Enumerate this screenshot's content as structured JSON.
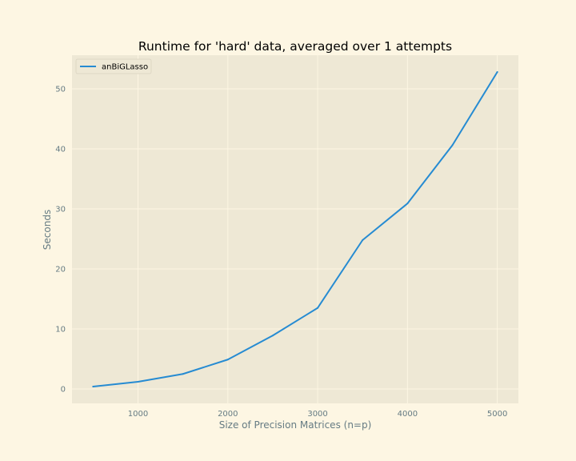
{
  "chart_data": {
    "type": "line",
    "title": "Runtime for 'hard' data, averaged over 1 attempts",
    "xlabel": "Size of Precision Matrices (n=p)",
    "ylabel": "Seconds",
    "xlim": [
      265,
      5235
    ],
    "ylim": [
      -2.4,
      55.6
    ],
    "xticks": [
      1000,
      2000,
      3000,
      4000,
      5000
    ],
    "yticks": [
      0,
      10,
      20,
      30,
      40,
      50
    ],
    "grid": true,
    "legend_position": "top-left",
    "series": [
      {
        "name": "anBiGLasso",
        "color": "#268bd2",
        "x": [
          500,
          1000,
          1500,
          2000,
          2500,
          3000,
          3500,
          4000,
          4500,
          5000
        ],
        "y": [
          0.4,
          1.2,
          2.5,
          4.9,
          8.9,
          13.5,
          24.8,
          30.9,
          40.6,
          52.8
        ]
      }
    ]
  },
  "colors": {
    "figure_bg": "#fdf6e3",
    "axes_bg": "#eee8d5",
    "grid": "#fdf6e3",
    "text": "#657b83"
  }
}
